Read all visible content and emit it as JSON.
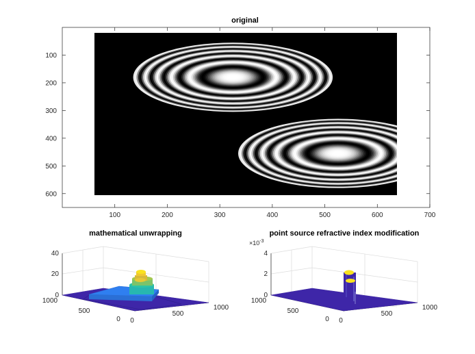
{
  "chart_data": [
    {
      "type": "image",
      "title": "original",
      "xlim": [
        0,
        700
      ],
      "ylim": [
        650,
        0
      ],
      "x_ticks": [
        100,
        200,
        300,
        400,
        500,
        600,
        700
      ],
      "y_ticks": [
        100,
        200,
        300,
        400,
        500,
        600
      ],
      "image_extent": {
        "x": [
          65,
          665
        ],
        "y": [
          25,
          625
        ]
      },
      "colormap": "gray",
      "ring_patterns": [
        {
          "cx": 325,
          "cy": 180,
          "rx": 190,
          "ry": 125
        },
        {
          "cx": 525,
          "cy": 455,
          "rx": 190,
          "ry": 125
        }
      ]
    },
    {
      "type": "surface3d",
      "title": "mathematical unwrapping",
      "zlim": [
        0,
        40
      ],
      "z_ticks": [
        0,
        20,
        40
      ],
      "x_ticks": [
        0,
        500,
        1000
      ],
      "y_ticks": [
        0,
        500,
        1000
      ],
      "colormap": "parula"
    },
    {
      "type": "surface3d",
      "title": "point source refractive index modification",
      "zlim": [
        0,
        4
      ],
      "z_ticks": [
        0,
        2,
        4
      ],
      "z_exponent_label": "×10",
      "z_exponent_power": "-3",
      "x_ticks": [
        0,
        500,
        1000
      ],
      "y_ticks": [
        0,
        500,
        1000
      ],
      "colormap": "parula"
    }
  ]
}
